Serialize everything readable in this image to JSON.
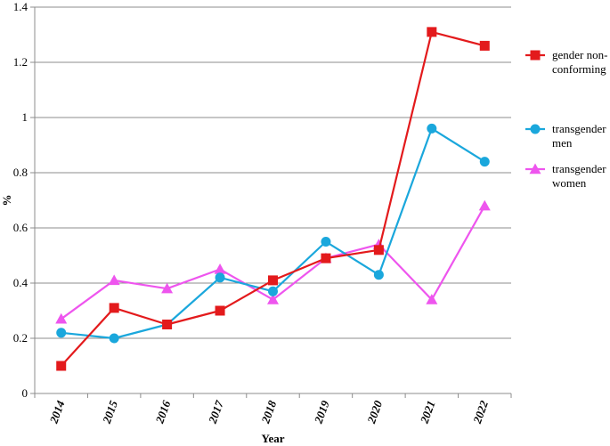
{
  "chart_data": {
    "type": "line",
    "title": "",
    "xlabel": "Year",
    "ylabel": "%",
    "ylim": [
      0,
      1.4
    ],
    "yticks": [
      "0",
      "0.2",
      "0.4",
      "0.6",
      "0.8",
      "1",
      "1.2",
      "1.4"
    ],
    "ytick_values": [
      0,
      0.2,
      0.4,
      0.6,
      0.8,
      1.0,
      1.2,
      1.4
    ],
    "grid": "horizontal",
    "legend_position": "right",
    "categories": [
      "2014",
      "2015",
      "2016",
      "2017",
      "2018",
      "2019",
      "2020",
      "2021",
      "2022"
    ],
    "series": [
      {
        "name": "gender non-conforming",
        "legend_lines": [
          "gender non-",
          "conforming"
        ],
        "color": "#e31a1c",
        "marker": "square",
        "values": [
          0.1,
          0.31,
          0.25,
          0.3,
          0.41,
          0.49,
          0.52,
          1.31,
          1.26
        ]
      },
      {
        "name": "transgender men",
        "legend_lines": [
          "transgender",
          "men"
        ],
        "color": "#1aa7dc",
        "marker": "circle",
        "values": [
          0.22,
          0.2,
          0.25,
          0.42,
          0.37,
          0.55,
          0.43,
          0.96,
          0.84
        ]
      },
      {
        "name": "transgender women",
        "legend_lines": [
          "transgender",
          "women"
        ],
        "color": "#ee55ee",
        "marker": "triangle",
        "values": [
          0.27,
          0.41,
          0.38,
          0.45,
          0.34,
          0.49,
          0.54,
          0.34,
          0.68
        ]
      }
    ]
  }
}
